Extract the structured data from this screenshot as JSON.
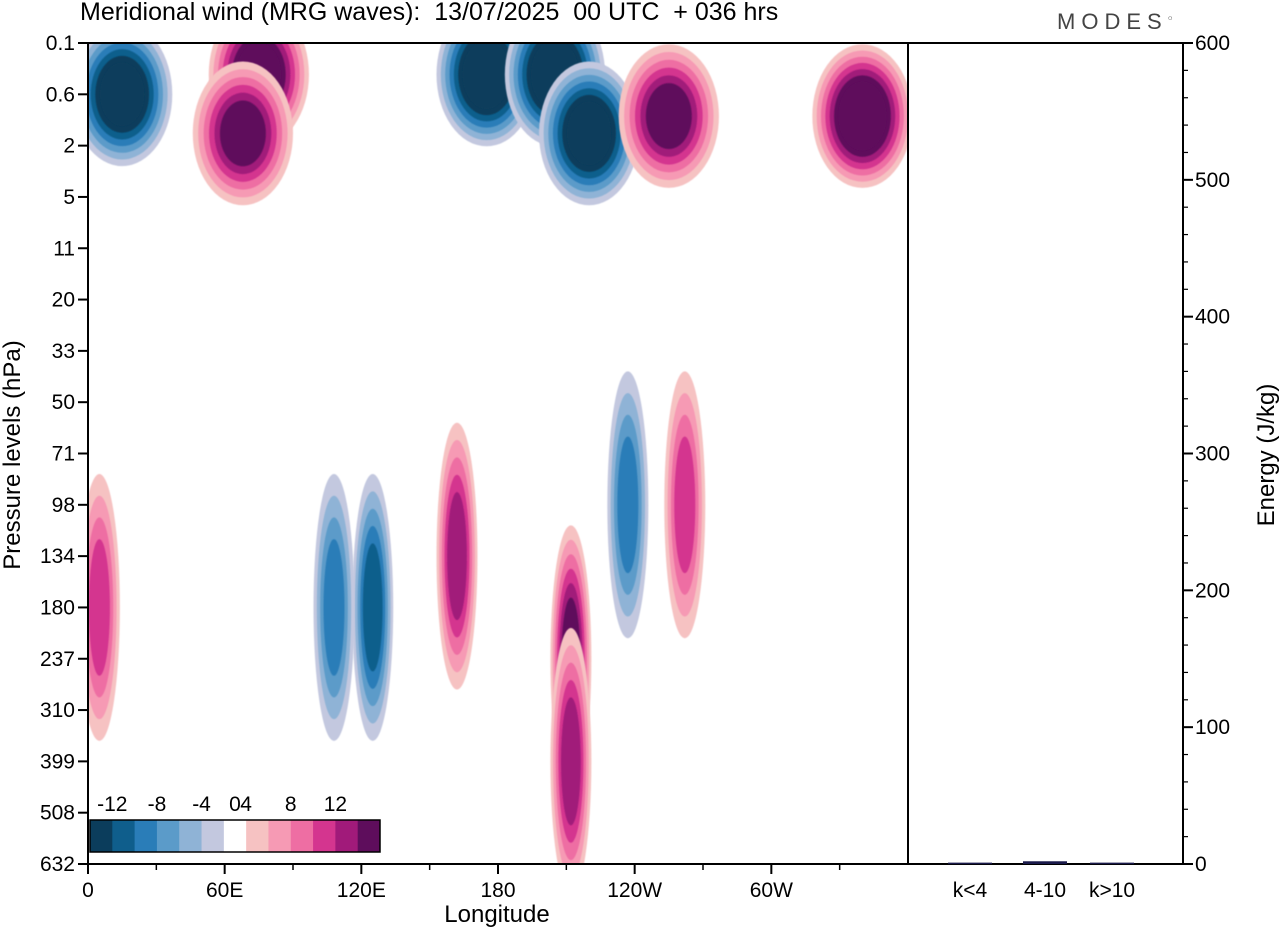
{
  "header": {
    "title": "Meridional wind (MRG waves):  13/07/2025  00 UTC  + 036 hrs",
    "brand": "MODES"
  },
  "chart_data": [
    {
      "type": "heatmap",
      "title": "Meridional wind (MRG waves):  13/07/2025  00 UTC  + 036 hrs",
      "xlabel": "Longitude",
      "ylabel": "Pressure levels (hPa)",
      "x_ticks": [
        "0",
        "60E",
        "120E",
        "180",
        "120W",
        "60W"
      ],
      "x_tick_degrees": [
        0,
        60,
        120,
        180,
        240,
        300
      ],
      "xlim": [
        0,
        360
      ],
      "y_ticks": [
        "0.1",
        "0.6",
        "2",
        "5",
        "11",
        "20",
        "33",
        "50",
        "71",
        "98",
        "134",
        "180",
        "237",
        "310",
        "399",
        "508",
        "632"
      ],
      "y_axis_scale": "pressure levels, top 0.1 hPa to bottom 632 hPa",
      "colorbar": {
        "labels": [
          "-12",
          "-8",
          "-4",
          "0",
          "4",
          "8",
          "12"
        ],
        "label_values": [
          -12,
          -8,
          -4,
          0,
          4,
          8,
          12
        ],
        "levels": [
          -14,
          -12,
          -10,
          -8,
          -6,
          -4,
          -2,
          2,
          4,
          6,
          8,
          10,
          12,
          14
        ],
        "colors": [
          "#0b3d5c",
          "#0f5e8c",
          "#2a7db8",
          "#5b9bc9",
          "#8fb3d6",
          "#c3c8df",
          "#ffffff",
          "#f6c2c2",
          "#f69ab4",
          "#ee6ea3",
          "#d4358f",
          "#a11a7a",
          "#5e0d5c"
        ],
        "placement": "bottom-left"
      },
      "features": [
        {
          "lon": 175,
          "level": "0.3",
          "value": -14
        },
        {
          "lon": 205,
          "level": "0.3",
          "value": -14
        },
        {
          "lon": 220,
          "level": "1.5",
          "value": -13
        },
        {
          "lon": 75,
          "level": "0.3",
          "value": 13
        },
        {
          "lon": 68,
          "level": "1.5",
          "value": 11
        },
        {
          "lon": 340,
          "level": "1",
          "value": 14
        },
        {
          "lon": 255,
          "level": "1",
          "value": 11
        },
        {
          "lon": 15,
          "level": "0.6",
          "value": -13
        },
        {
          "lon": 125,
          "level": "180",
          "value": -9
        },
        {
          "lon": 108,
          "level": "180",
          "value": -7
        },
        {
          "lon": 162,
          "level": "134",
          "value": 9
        },
        {
          "lon": 212,
          "level": "237",
          "value": 11
        },
        {
          "lon": 212,
          "level": "399",
          "value": 9
        },
        {
          "lon": 237,
          "level": "98",
          "value": -7
        },
        {
          "lon": 262,
          "level": "98",
          "value": 7
        },
        {
          "lon": 5,
          "level": "180",
          "value": 7
        }
      ]
    },
    {
      "type": "bar",
      "ylabel": "Energy (J/kg)",
      "categories": [
        "k<4",
        "4-10",
        "k>10"
      ],
      "values": [
        1,
        2,
        1
      ],
      "ylim": [
        0,
        600
      ],
      "y_ticks": [
        "0",
        "100",
        "200",
        "300",
        "400",
        "500",
        "600"
      ],
      "bar_color": "#1a1a4a"
    }
  ]
}
